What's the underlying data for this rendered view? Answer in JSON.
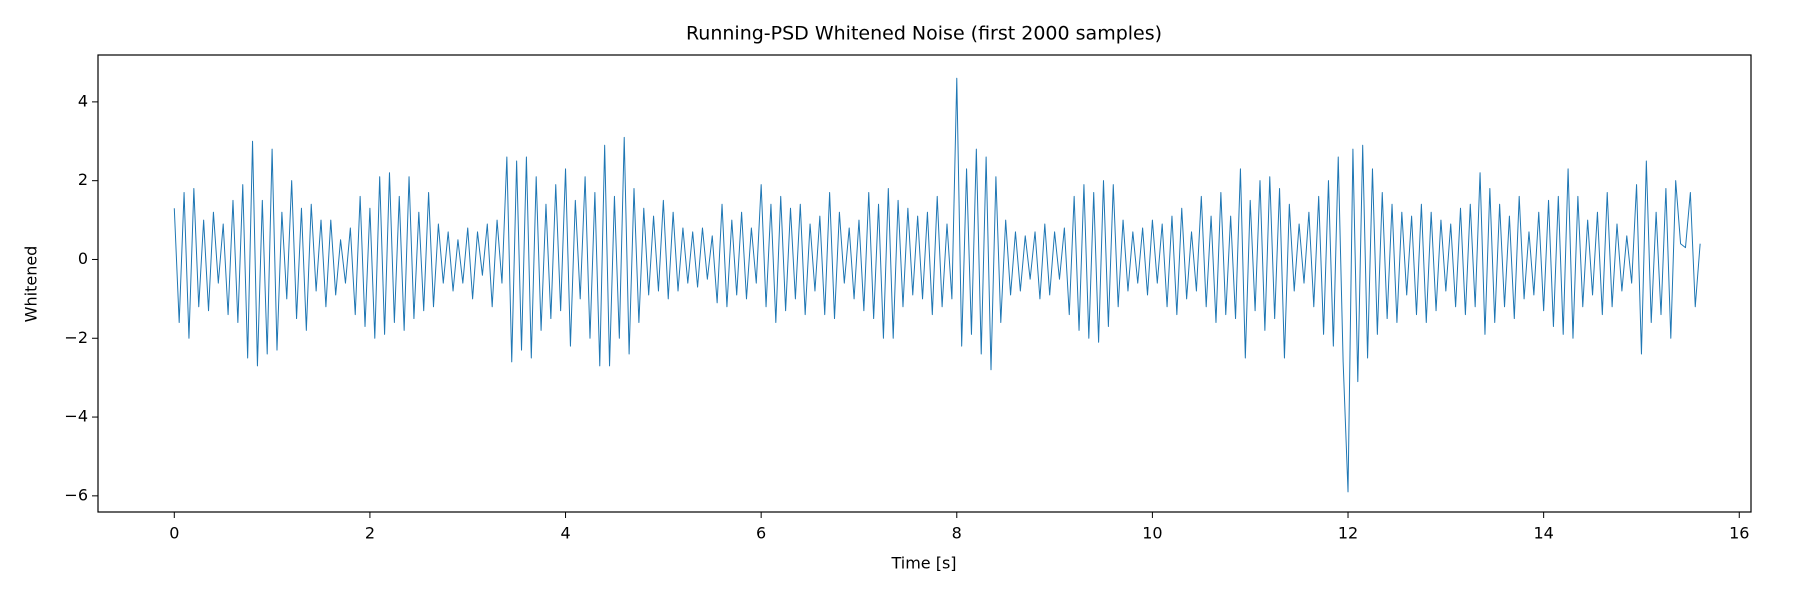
{
  "chart_data": {
    "type": "line",
    "title": "Running-PSD Whitened Noise (first 2000 samples)",
    "xlabel": "Time [s]",
    "ylabel": "Whitened",
    "color": "#1f77b4",
    "xlim": [
      -0.78,
      16.12
    ],
    "ylim": [
      -6.41,
      5.19
    ],
    "xticks": [
      0,
      2,
      4,
      6,
      8,
      10,
      12,
      14,
      16
    ],
    "yticks": [
      {
        "value": -6,
        "label": "−6"
      },
      {
        "value": -4,
        "label": "−4"
      },
      {
        "value": -2,
        "label": "−2"
      },
      0,
      2,
      4
    ],
    "x": [
      0,
      0.05,
      0.1,
      0.15,
      0.2,
      0.25,
      0.3,
      0.35,
      0.4,
      0.45,
      0.5,
      0.55,
      0.6,
      0.65,
      0.7,
      0.75,
      0.8,
      0.85,
      0.9,
      0.95,
      1,
      1.05,
      1.1,
      1.15,
      1.2,
      1.25,
      1.3,
      1.35,
      1.4,
      1.45,
      1.5,
      1.55,
      1.6,
      1.65,
      1.7,
      1.75,
      1.8,
      1.85,
      1.9,
      1.95,
      2,
      2.05,
      2.1,
      2.15,
      2.2,
      2.25,
      2.3,
      2.35,
      2.4,
      2.45,
      2.5,
      2.55,
      2.6,
      2.65,
      2.7,
      2.75,
      2.8,
      2.85,
      2.9,
      2.95,
      3,
      3.05,
      3.1,
      3.15,
      3.2,
      3.25,
      3.3,
      3.35,
      3.4,
      3.45,
      3.5,
      3.55,
      3.6,
      3.65,
      3.7,
      3.75,
      3.8,
      3.85,
      3.9,
      3.95,
      4,
      4.05,
      4.1,
      4.15,
      4.2,
      4.25,
      4.3,
      4.35,
      4.4,
      4.45,
      4.5,
      4.55,
      4.6,
      4.65,
      4.7,
      4.75,
      4.8,
      4.85,
      4.9,
      4.95,
      5,
      5.05,
      5.1,
      5.15,
      5.2,
      5.25,
      5.3,
      5.35,
      5.4,
      5.45,
      5.5,
      5.55,
      5.6,
      5.65,
      5.7,
      5.75,
      5.8,
      5.85,
      5.9,
      5.95,
      6,
      6.05,
      6.1,
      6.15,
      6.2,
      6.25,
      6.3,
      6.35,
      6.4,
      6.45,
      6.5,
      6.55,
      6.6,
      6.65,
      6.7,
      6.75,
      6.8,
      6.85,
      6.9,
      6.95,
      7,
      7.05,
      7.1,
      7.15,
      7.2,
      7.25,
      7.3,
      7.35,
      7.4,
      7.45,
      7.5,
      7.55,
      7.6,
      7.65,
      7.7,
      7.75,
      7.8,
      7.85,
      7.9,
      7.95,
      8,
      8.05,
      8.1,
      8.15,
      8.2,
      8.25,
      8.3,
      8.35,
      8.4,
      8.45,
      8.5,
      8.55,
      8.6,
      8.65,
      8.7,
      8.75,
      8.8,
      8.85,
      8.9,
      8.95,
      9,
      9.05,
      9.1,
      9.15,
      9.2,
      9.25,
      9.3,
      9.35,
      9.4,
      9.45,
      9.5,
      9.55,
      9.6,
      9.65,
      9.7,
      9.75,
      9.8,
      9.85,
      9.9,
      9.95,
      10,
      10.05,
      10.1,
      10.15,
      10.2,
      10.25,
      10.3,
      10.35,
      10.4,
      10.45,
      10.5,
      10.55,
      10.6,
      10.65,
      10.7,
      10.75,
      10.8,
      10.85,
      10.9,
      10.95,
      11,
      11.05,
      11.1,
      11.15,
      11.2,
      11.25,
      11.3,
      11.35,
      11.4,
      11.45,
      11.5,
      11.55,
      11.6,
      11.65,
      11.7,
      11.75,
      11.8,
      11.85,
      11.9,
      11.95,
      12,
      12.05,
      12.1,
      12.15,
      12.2,
      12.25,
      12.3,
      12.35,
      12.4,
      12.45,
      12.5,
      12.55,
      12.6,
      12.65,
      12.7,
      12.75,
      12.8,
      12.85,
      12.9,
      12.95,
      13,
      13.05,
      13.1,
      13.15,
      13.2,
      13.25,
      13.3,
      13.35,
      13.4,
      13.45,
      13.5,
      13.55,
      13.6,
      13.65,
      13.7,
      13.75,
      13.8,
      13.85,
      13.9,
      13.95,
      14,
      14.05,
      14.1,
      14.15,
      14.2,
      14.25,
      14.3,
      14.35,
      14.4,
      14.45,
      14.5,
      14.55,
      14.6,
      14.65,
      14.7,
      14.75,
      14.8,
      14.85,
      14.9,
      14.95,
      15,
      15.05,
      15.1,
      15.15,
      15.2,
      15.25,
      15.3,
      15.35,
      15.4,
      15.45,
      15.5,
      15.55,
      15.6
    ],
    "values": [
      1.3,
      -1.6,
      1.7,
      -2.0,
      1.8,
      -1.2,
      1.0,
      -1.3,
      1.2,
      -0.6,
      0.9,
      -1.4,
      1.5,
      -1.6,
      1.9,
      -2.5,
      3.0,
      -2.7,
      1.5,
      -2.4,
      2.8,
      -2.3,
      1.2,
      -1.0,
      2.0,
      -1.5,
      1.3,
      -1.8,
      1.4,
      -0.8,
      1.0,
      -1.2,
      1.0,
      -0.9,
      0.5,
      -0.6,
      0.8,
      -1.4,
      1.6,
      -1.7,
      1.3,
      -2.0,
      2.1,
      -1.9,
      2.2,
      -1.6,
      1.6,
      -1.8,
      2.1,
      -1.5,
      1.2,
      -1.3,
      1.7,
      -1.2,
      0.9,
      -0.6,
      0.7,
      -0.8,
      0.5,
      -0.6,
      0.8,
      -1.0,
      0.7,
      -0.4,
      0.9,
      -1.2,
      1.0,
      -0.6,
      2.6,
      -2.6,
      2.5,
      -2.3,
      2.6,
      -2.5,
      2.1,
      -1.8,
      1.4,
      -1.5,
      1.9,
      -1.3,
      2.3,
      -2.2,
      1.5,
      -1.0,
      2.1,
      -2.0,
      1.7,
      -2.7,
      2.9,
      -2.7,
      1.6,
      -2.0,
      3.1,
      -2.4,
      1.8,
      -1.6,
      1.3,
      -0.9,
      1.1,
      -0.8,
      1.5,
      -1.0,
      1.2,
      -0.8,
      0.8,
      -0.6,
      0.7,
      -0.7,
      0.8,
      -0.5,
      0.6,
      -1.1,
      1.4,
      -1.2,
      1.0,
      -0.9,
      1.2,
      -1.0,
      0.8,
      -0.6,
      1.9,
      -1.2,
      1.4,
      -1.6,
      1.6,
      -1.3,
      1.3,
      -1.0,
      1.4,
      -1.4,
      0.9,
      -0.8,
      1.1,
      -1.4,
      1.7,
      -1.5,
      1.2,
      -0.6,
      0.8,
      -1.0,
      1.0,
      -1.3,
      1.7,
      -1.5,
      1.4,
      -2.0,
      1.8,
      -2.0,
      1.5,
      -1.2,
      1.3,
      -0.9,
      1.1,
      -1.0,
      1.2,
      -1.4,
      1.6,
      -1.2,
      0.9,
      -1.0,
      4.6,
      -2.2,
      2.3,
      -1.9,
      2.8,
      -2.4,
      2.6,
      -2.8,
      2.1,
      -1.6,
      1.0,
      -0.9,
      0.7,
      -0.8,
      0.6,
      -0.5,
      0.7,
      -1.0,
      0.9,
      -0.9,
      0.7,
      -0.5,
      0.8,
      -1.4,
      1.6,
      -1.8,
      1.9,
      -2.0,
      1.7,
      -2.1,
      2.0,
      -1.7,
      1.9,
      -1.2,
      1.0,
      -0.8,
      0.7,
      -0.6,
      0.8,
      -0.9,
      1.0,
      -0.6,
      0.9,
      -1.2,
      1.1,
      -1.4,
      1.3,
      -1.0,
      0.7,
      -0.8,
      1.6,
      -1.2,
      1.1,
      -1.6,
      1.7,
      -1.4,
      1.1,
      -1.5,
      2.3,
      -2.5,
      1.5,
      -1.3,
      2.0,
      -1.8,
      2.1,
      -1.5,
      1.8,
      -2.5,
      1.4,
      -0.8,
      0.9,
      -0.6,
      1.2,
      -1.2,
      1.6,
      -1.9,
      2.0,
      -2.2,
      2.6,
      -2.6,
      -5.9,
      2.8,
      -3.1,
      2.9,
      -2.5,
      2.3,
      -1.9,
      1.7,
      -1.5,
      1.4,
      -1.6,
      1.2,
      -0.9,
      1.1,
      -1.4,
      1.4,
      -1.6,
      1.2,
      -1.3,
      1.0,
      -0.8,
      0.9,
      -1.2,
      1.3,
      -1.4,
      1.4,
      -1.2,
      2.2,
      -1.9,
      1.8,
      -1.6,
      1.4,
      -1.2,
      1.1,
      -1.5,
      1.6,
      -1.0,
      0.7,
      -0.9,
      1.2,
      -1.3,
      1.5,
      -1.7,
      1.6,
      -1.9,
      2.3,
      -2.0,
      1.6,
      -1.2,
      1.0,
      -0.9,
      1.2,
      -1.4,
      1.7,
      -1.2,
      0.9,
      -0.8,
      0.6,
      -0.6,
      1.9,
      -2.4,
      2.5,
      -1.6,
      1.2,
      -1.4,
      1.8,
      -2.0,
      2.0,
      0.4,
      0.3,
      1.7,
      -1.2,
      0.4
    ]
  }
}
